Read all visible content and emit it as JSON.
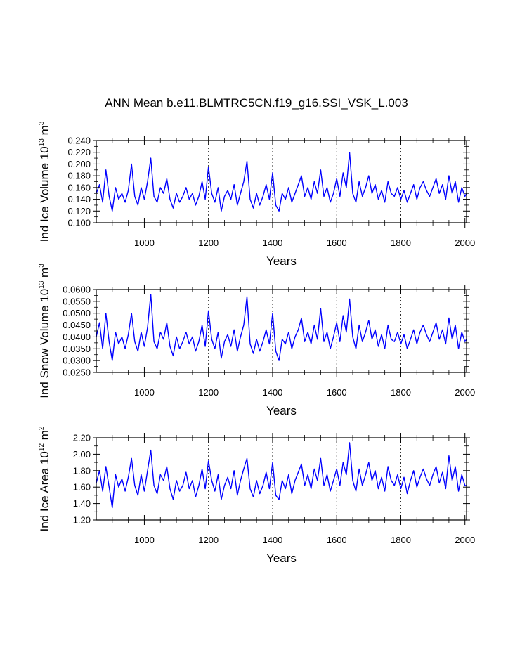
{
  "figure": {
    "title": "ANN Mean b.e11.BLMTRC5CN.f19_g16.SSI_VSK_L.003",
    "line_color": "#0000ff"
  },
  "chart_data": [
    {
      "type": "line",
      "ylabel": "Ind Ice Volume 10",
      "ylabel_exp": "13",
      "ylabel_unit": "m",
      "ylabel_unit_exp": "3",
      "xlabel": "Years",
      "xlim": [
        850,
        2005
      ],
      "ylim": [
        0.1,
        0.24
      ],
      "x_ticks": [
        1000,
        1200,
        1400,
        1600,
        1800,
        2000
      ],
      "x_tick_labels": [
        "1000",
        "1200",
        "1400",
        "1600",
        "1800",
        "2000"
      ],
      "y_ticks": [
        0.1,
        0.12,
        0.14,
        0.16,
        0.18,
        0.2,
        0.22,
        0.24
      ],
      "y_tick_labels": [
        "0.100",
        "0.120",
        "0.140",
        "0.160",
        "0.180",
        "0.200",
        "0.220",
        "0.240"
      ],
      "vgrid_dashed": [
        1200,
        1400,
        1600,
        1800
      ],
      "series": [
        {
          "x": [
            850,
            860,
            870,
            880,
            890,
            900,
            910,
            920,
            930,
            940,
            950,
            960,
            970,
            980,
            990,
            1000,
            1010,
            1020,
            1030,
            1040,
            1050,
            1060,
            1070,
            1080,
            1090,
            1100,
            1110,
            1120,
            1130,
            1140,
            1150,
            1160,
            1170,
            1180,
            1190,
            1200,
            1210,
            1220,
            1230,
            1240,
            1250,
            1260,
            1270,
            1280,
            1290,
            1300,
            1310,
            1320,
            1330,
            1340,
            1350,
            1360,
            1370,
            1380,
            1390,
            1400,
            1410,
            1420,
            1430,
            1440,
            1450,
            1460,
            1470,
            1480,
            1490,
            1500,
            1510,
            1520,
            1530,
            1540,
            1550,
            1560,
            1570,
            1580,
            1590,
            1600,
            1610,
            1620,
            1630,
            1640,
            1650,
            1660,
            1670,
            1680,
            1690,
            1700,
            1710,
            1720,
            1730,
            1740,
            1750,
            1760,
            1770,
            1780,
            1790,
            1800,
            1810,
            1820,
            1830,
            1840,
            1850,
            1860,
            1870,
            1880,
            1890,
            1900,
            1910,
            1920,
            1930,
            1940,
            1950,
            1960,
            1970,
            1980,
            1990,
            2000,
            2005
          ],
          "y": [
            0.15,
            0.165,
            0.135,
            0.19,
            0.145,
            0.12,
            0.16,
            0.14,
            0.15,
            0.135,
            0.155,
            0.2,
            0.145,
            0.13,
            0.16,
            0.14,
            0.17,
            0.21,
            0.145,
            0.135,
            0.16,
            0.15,
            0.175,
            0.14,
            0.125,
            0.15,
            0.135,
            0.145,
            0.16,
            0.14,
            0.15,
            0.13,
            0.145,
            0.17,
            0.14,
            0.195,
            0.15,
            0.135,
            0.16,
            0.12,
            0.145,
            0.155,
            0.14,
            0.165,
            0.13,
            0.15,
            0.17,
            0.205,
            0.14,
            0.125,
            0.15,
            0.13,
            0.145,
            0.165,
            0.14,
            0.185,
            0.13,
            0.12,
            0.15,
            0.14,
            0.16,
            0.135,
            0.15,
            0.165,
            0.18,
            0.145,
            0.16,
            0.14,
            0.17,
            0.15,
            0.19,
            0.145,
            0.16,
            0.135,
            0.15,
            0.175,
            0.145,
            0.185,
            0.16,
            0.22,
            0.15,
            0.135,
            0.17,
            0.145,
            0.16,
            0.18,
            0.15,
            0.165,
            0.14,
            0.155,
            0.135,
            0.17,
            0.15,
            0.145,
            0.16,
            0.14,
            0.155,
            0.135,
            0.15,
            0.165,
            0.14,
            0.16,
            0.17,
            0.155,
            0.145,
            0.16,
            0.175,
            0.15,
            0.165,
            0.14,
            0.18,
            0.15,
            0.17,
            0.135,
            0.16,
            0.145,
            0.15
          ]
        }
      ]
    },
    {
      "type": "line",
      "ylabel": "Ind Snow Volume 10",
      "ylabel_exp": "13",
      "ylabel_unit": "m",
      "ylabel_unit_exp": "3",
      "xlabel": "Years",
      "xlim": [
        850,
        2005
      ],
      "ylim": [
        0.025,
        0.06
      ],
      "x_ticks": [
        1000,
        1200,
        1400,
        1600,
        1800,
        2000
      ],
      "x_tick_labels": [
        "1000",
        "1200",
        "1400",
        "1600",
        "1800",
        "2000"
      ],
      "y_ticks": [
        0.025,
        0.03,
        0.035,
        0.04,
        0.045,
        0.05,
        0.055,
        0.06
      ],
      "y_tick_labels": [
        "0.0250",
        "0.0300",
        "0.0350",
        "0.0400",
        "0.0450",
        "0.0500",
        "0.0550",
        "0.0600"
      ],
      "vgrid_dashed": [
        1200,
        1400,
        1600,
        1800
      ],
      "series": [
        {
          "x": [
            850,
            860,
            870,
            880,
            890,
            900,
            910,
            920,
            930,
            940,
            950,
            960,
            970,
            980,
            990,
            1000,
            1010,
            1020,
            1030,
            1040,
            1050,
            1060,
            1070,
            1080,
            1090,
            1100,
            1110,
            1120,
            1130,
            1140,
            1150,
            1160,
            1170,
            1180,
            1190,
            1200,
            1210,
            1220,
            1230,
            1240,
            1250,
            1260,
            1270,
            1280,
            1290,
            1300,
            1310,
            1320,
            1330,
            1340,
            1350,
            1360,
            1370,
            1380,
            1390,
            1400,
            1410,
            1420,
            1430,
            1440,
            1450,
            1460,
            1470,
            1480,
            1490,
            1500,
            1510,
            1520,
            1530,
            1540,
            1550,
            1560,
            1570,
            1580,
            1590,
            1600,
            1610,
            1620,
            1630,
            1640,
            1650,
            1660,
            1670,
            1680,
            1690,
            1700,
            1710,
            1720,
            1730,
            1740,
            1750,
            1760,
            1770,
            1780,
            1790,
            1800,
            1810,
            1820,
            1830,
            1840,
            1850,
            1860,
            1870,
            1880,
            1890,
            1900,
            1910,
            1920,
            1930,
            1940,
            1950,
            1960,
            1970,
            1980,
            1990,
            2000,
            2005
          ],
          "y": [
            0.04,
            0.046,
            0.035,
            0.05,
            0.038,
            0.03,
            0.042,
            0.037,
            0.04,
            0.035,
            0.041,
            0.05,
            0.038,
            0.034,
            0.042,
            0.036,
            0.044,
            0.058,
            0.038,
            0.035,
            0.042,
            0.039,
            0.046,
            0.036,
            0.032,
            0.04,
            0.035,
            0.038,
            0.042,
            0.037,
            0.04,
            0.034,
            0.038,
            0.045,
            0.036,
            0.051,
            0.039,
            0.035,
            0.042,
            0.031,
            0.038,
            0.041,
            0.036,
            0.043,
            0.034,
            0.04,
            0.045,
            0.057,
            0.037,
            0.033,
            0.039,
            0.034,
            0.038,
            0.043,
            0.037,
            0.05,
            0.034,
            0.03,
            0.039,
            0.037,
            0.042,
            0.035,
            0.04,
            0.043,
            0.048,
            0.038,
            0.042,
            0.037,
            0.045,
            0.039,
            0.052,
            0.038,
            0.042,
            0.035,
            0.04,
            0.046,
            0.038,
            0.049,
            0.042,
            0.056,
            0.04,
            0.035,
            0.045,
            0.038,
            0.042,
            0.047,
            0.039,
            0.043,
            0.036,
            0.041,
            0.035,
            0.045,
            0.039,
            0.038,
            0.042,
            0.037,
            0.041,
            0.035,
            0.039,
            0.043,
            0.037,
            0.042,
            0.045,
            0.041,
            0.038,
            0.042,
            0.046,
            0.039,
            0.043,
            0.037,
            0.048,
            0.039,
            0.045,
            0.035,
            0.042,
            0.038,
            0.039
          ]
        }
      ]
    },
    {
      "type": "line",
      "ylabel": "Ind Ice Area 10",
      "ylabel_exp": "12",
      "ylabel_unit": "m",
      "ylabel_unit_exp": "2",
      "xlabel": "Years",
      "xlim": [
        850,
        2005
      ],
      "ylim": [
        1.2,
        2.2
      ],
      "x_ticks": [
        1000,
        1200,
        1400,
        1600,
        1800,
        2000
      ],
      "x_tick_labels": [
        "1000",
        "1200",
        "1400",
        "1600",
        "1800",
        "2000"
      ],
      "y_ticks": [
        1.2,
        1.4,
        1.6,
        1.8,
        2.0,
        2.2
      ],
      "y_tick_labels": [
        "1.20",
        "1.40",
        "1.60",
        "1.80",
        "2.00",
        "2.20"
      ],
      "vgrid_dashed": [
        1200,
        1400,
        1600,
        1800
      ],
      "series": [
        {
          "x": [
            850,
            860,
            870,
            880,
            890,
            900,
            910,
            920,
            930,
            940,
            950,
            960,
            970,
            980,
            990,
            1000,
            1010,
            1020,
            1030,
            1040,
            1050,
            1060,
            1070,
            1080,
            1090,
            1100,
            1110,
            1120,
            1130,
            1140,
            1150,
            1160,
            1170,
            1180,
            1190,
            1200,
            1210,
            1220,
            1230,
            1240,
            1250,
            1260,
            1270,
            1280,
            1290,
            1300,
            1310,
            1320,
            1330,
            1340,
            1350,
            1360,
            1370,
            1380,
            1390,
            1400,
            1410,
            1420,
            1430,
            1440,
            1450,
            1460,
            1470,
            1480,
            1490,
            1500,
            1510,
            1520,
            1530,
            1540,
            1550,
            1560,
            1570,
            1580,
            1590,
            1600,
            1610,
            1620,
            1630,
            1640,
            1650,
            1660,
            1670,
            1680,
            1690,
            1700,
            1710,
            1720,
            1730,
            1740,
            1750,
            1760,
            1770,
            1780,
            1790,
            1800,
            1810,
            1820,
            1830,
            1840,
            1850,
            1860,
            1870,
            1880,
            1890,
            1900,
            1910,
            1920,
            1930,
            1940,
            1950,
            1960,
            1970,
            1980,
            1990,
            2000,
            2005
          ],
          "y": [
            1.65,
            1.8,
            1.55,
            1.85,
            1.6,
            1.35,
            1.75,
            1.6,
            1.7,
            1.55,
            1.72,
            1.95,
            1.62,
            1.5,
            1.75,
            1.55,
            1.8,
            2.05,
            1.62,
            1.52,
            1.75,
            1.68,
            1.85,
            1.58,
            1.45,
            1.68,
            1.55,
            1.62,
            1.78,
            1.58,
            1.68,
            1.48,
            1.62,
            1.82,
            1.58,
            1.92,
            1.68,
            1.55,
            1.75,
            1.45,
            1.62,
            1.72,
            1.58,
            1.8,
            1.5,
            1.68,
            1.82,
            1.95,
            1.58,
            1.48,
            1.68,
            1.52,
            1.62,
            1.78,
            1.58,
            1.9,
            1.5,
            1.45,
            1.68,
            1.58,
            1.75,
            1.52,
            1.68,
            1.78,
            1.88,
            1.62,
            1.75,
            1.58,
            1.82,
            1.68,
            1.95,
            1.62,
            1.75,
            1.55,
            1.68,
            1.82,
            1.62,
            1.9,
            1.75,
            2.14,
            1.68,
            1.55,
            1.82,
            1.62,
            1.75,
            1.9,
            1.68,
            1.8,
            1.58,
            1.72,
            1.55,
            1.85,
            1.68,
            1.62,
            1.75,
            1.58,
            1.72,
            1.52,
            1.68,
            1.8,
            1.6,
            1.72,
            1.82,
            1.7,
            1.62,
            1.75,
            1.85,
            1.65,
            1.78,
            1.58,
            1.98,
            1.68,
            1.85,
            1.55,
            1.75,
            1.62,
            1.62
          ]
        }
      ]
    }
  ]
}
